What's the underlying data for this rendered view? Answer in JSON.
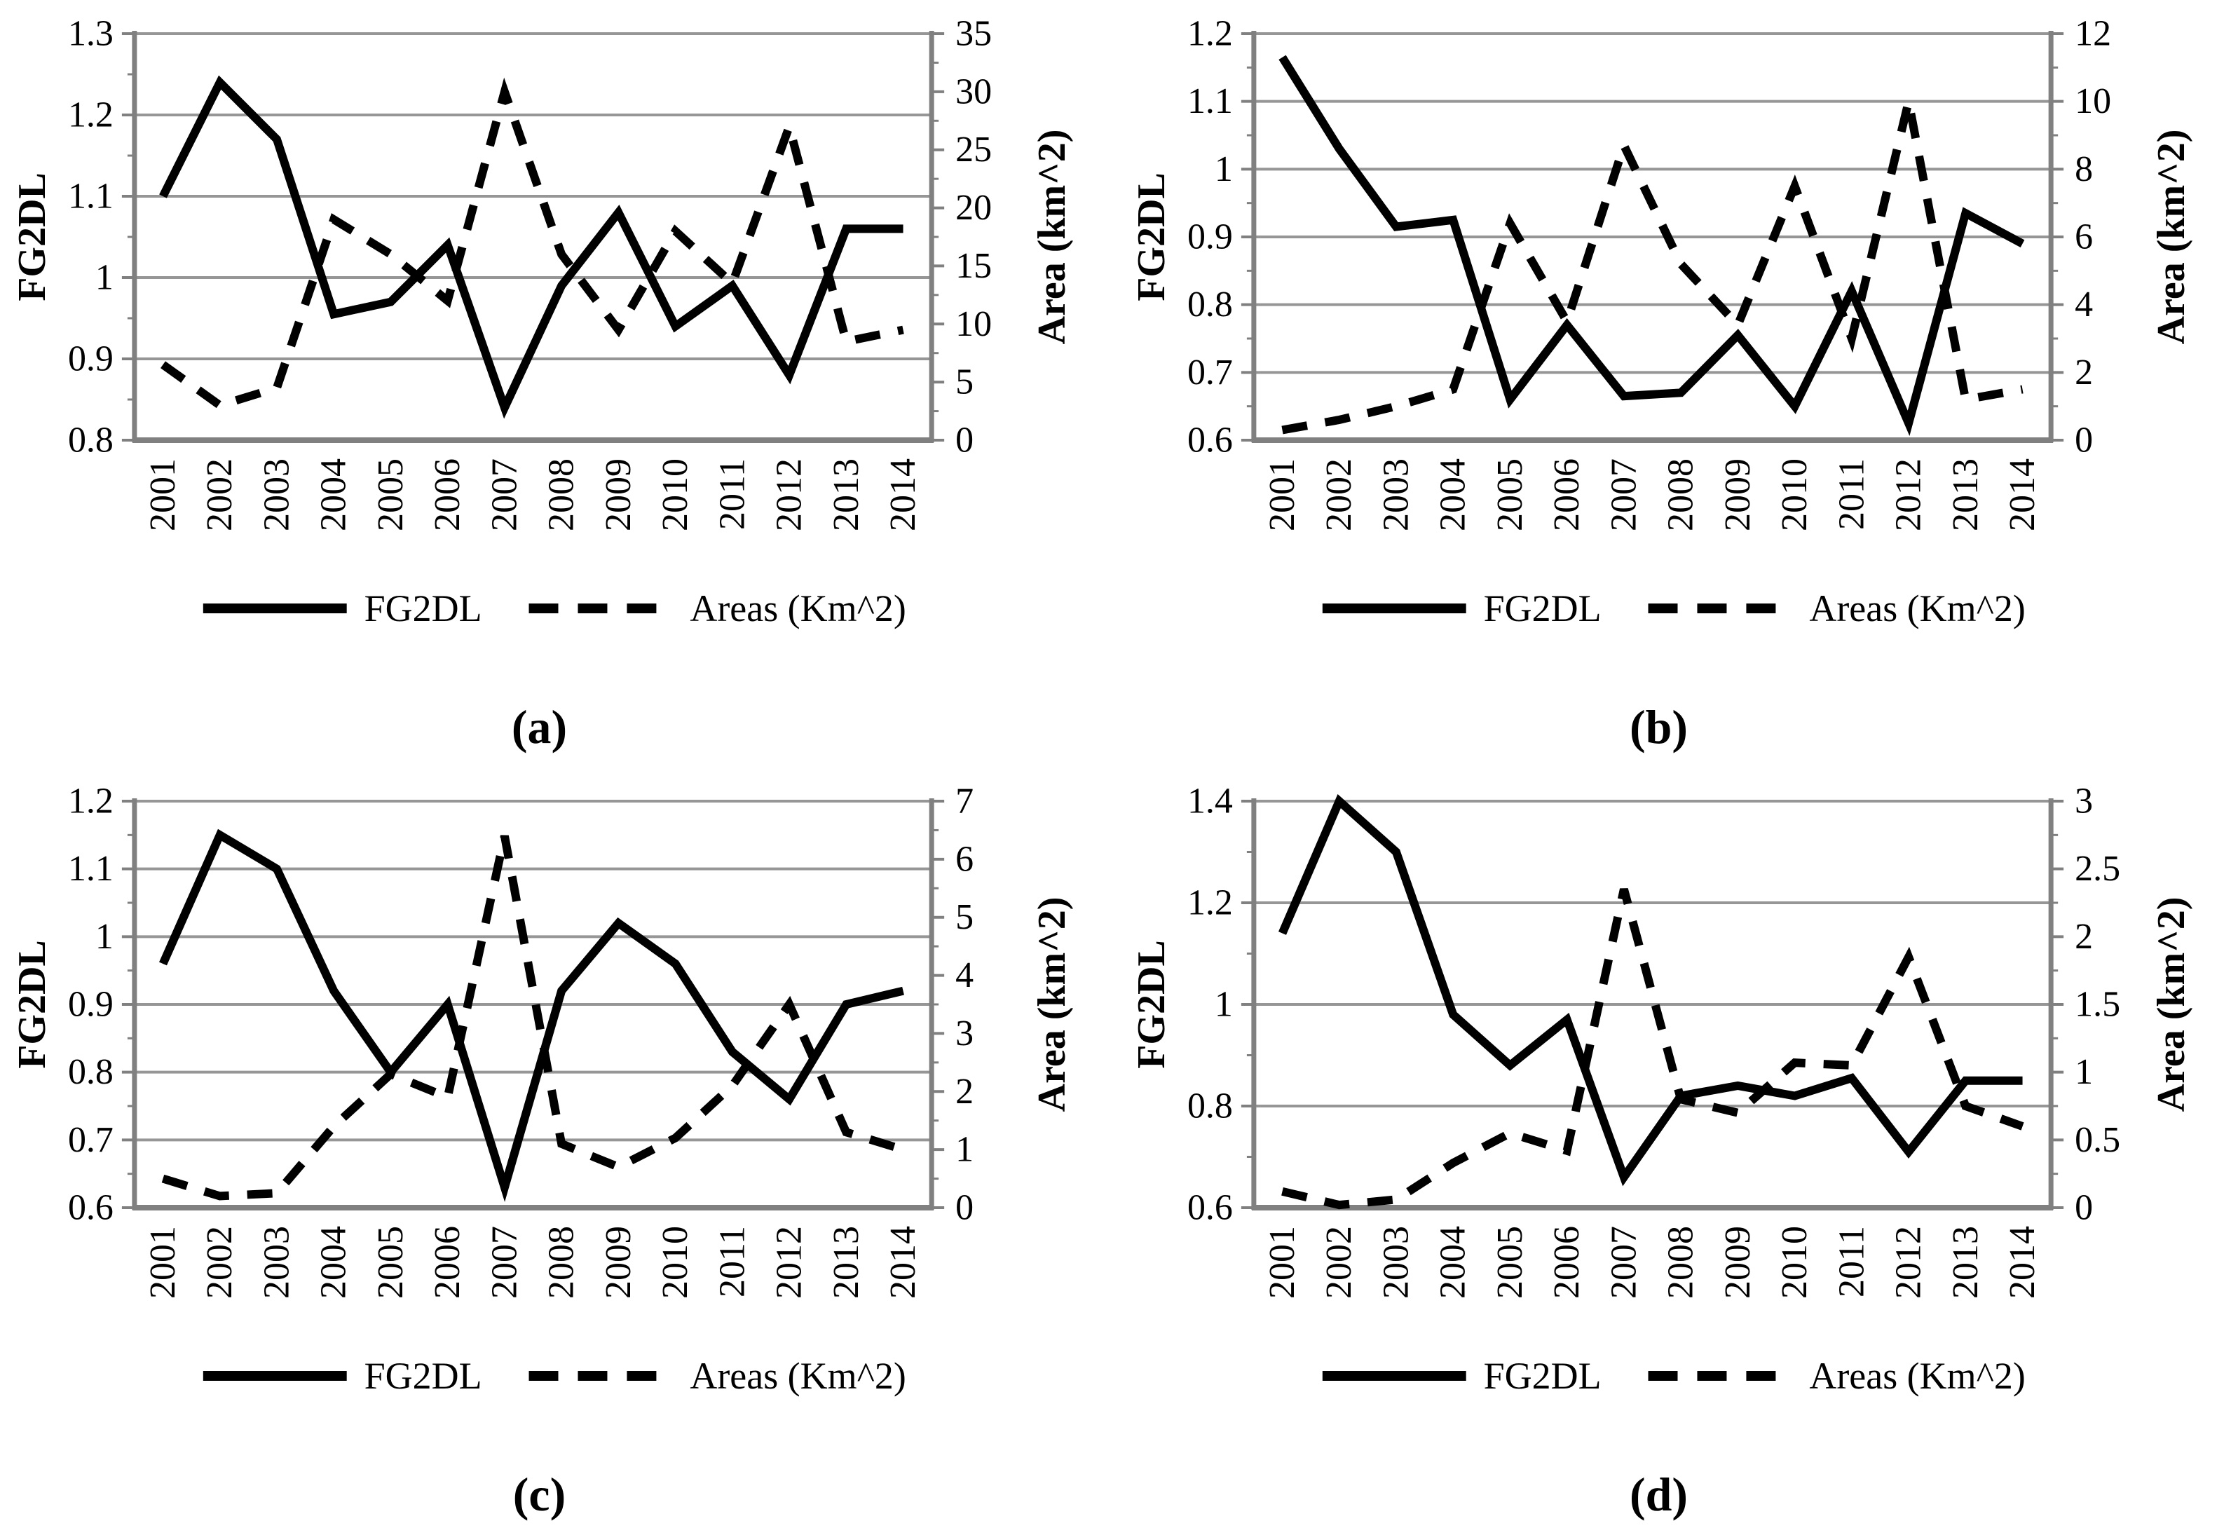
{
  "figure": {
    "background": "#ffffff",
    "grid_color": "#969696",
    "axis_color": "#808080",
    "series_color": "#000000",
    "left_axis_title": "FG2DL",
    "right_axis_title": "Area (km^2)",
    "legend_solid_label": "FG2DL",
    "legend_dashed_label": "Areas (Km^2)"
  },
  "chart_data": [
    {
      "id": "a",
      "type": "line",
      "caption": "(a)",
      "x": [
        "2001",
        "2002",
        "2003",
        "2004",
        "2005",
        "2006",
        "2007",
        "2008",
        "2009",
        "2010",
        "2011",
        "2012",
        "2013",
        "2014"
      ],
      "left_axis": {
        "label": "FG2DL",
        "min": 0.8,
        "max": 1.3,
        "tick_values": [
          0.8,
          0.9,
          1.0,
          1.1,
          1.2,
          1.3
        ],
        "tick_labels": [
          "0.8",
          "0.9",
          "1",
          "1.1",
          "1.2",
          "1.3"
        ]
      },
      "right_axis": {
        "label": "Area (km^2)",
        "min": 0,
        "max": 35,
        "tick_values": [
          0,
          5,
          10,
          15,
          20,
          25,
          30,
          35
        ],
        "tick_labels": [
          "0",
          "5",
          "10",
          "15",
          "20",
          "25",
          "30",
          "35"
        ]
      },
      "legend": [
        {
          "label": "FG2DL",
          "style": "solid"
        },
        {
          "label": "Areas (Km^2)",
          "style": "dashed"
        }
      ],
      "series": [
        {
          "name": "FG2DL",
          "axis": "left",
          "style": "solid",
          "values": [
            1.1,
            1.24,
            1.17,
            0.955,
            0.97,
            1.04,
            0.84,
            0.99,
            1.08,
            0.94,
            0.99,
            0.88,
            1.06,
            1.06
          ]
        },
        {
          "name": "Areas (Km^2)",
          "axis": "right",
          "style": "dashed",
          "values": [
            6.5,
            3,
            4.5,
            19,
            16,
            12,
            30,
            16,
            9.5,
            18,
            13.5,
            27,
            8.5,
            9.5
          ]
        }
      ]
    },
    {
      "id": "b",
      "type": "line",
      "caption": "(b)",
      "x": [
        "2001",
        "2002",
        "2003",
        "2004",
        "2005",
        "2006",
        "2007",
        "2008",
        "2009",
        "2010",
        "2011",
        "2012",
        "2013",
        "2014"
      ],
      "left_axis": {
        "label": "FG2DL",
        "min": 0.6,
        "max": 1.2,
        "tick_values": [
          0.6,
          0.7,
          0.8,
          0.9,
          1.0,
          1.1,
          1.2
        ],
        "tick_labels": [
          "0.6",
          "0.7",
          "0.8",
          "0.9",
          "1",
          "1.1",
          "1.2"
        ]
      },
      "right_axis": {
        "label": "Area (km^2)",
        "min": 0,
        "max": 12,
        "tick_values": [
          0,
          2,
          4,
          6,
          8,
          10,
          12
        ],
        "tick_labels": [
          "0",
          "2",
          "4",
          "6",
          "8",
          "10",
          "12"
        ]
      },
      "legend": [
        {
          "label": "FG2DL",
          "style": "solid"
        },
        {
          "label": "Areas (Km^2)",
          "style": "dashed"
        }
      ],
      "series": [
        {
          "name": "FG2DL",
          "axis": "left",
          "style": "solid",
          "values": [
            1.165,
            1.03,
            0.915,
            0.925,
            0.66,
            0.77,
            0.665,
            0.67,
            0.755,
            0.65,
            0.82,
            0.625,
            0.935,
            0.89
          ]
        },
        {
          "name": "Areas (Km^2)",
          "axis": "right",
          "style": "dashed",
          "values": [
            0.3,
            0.6,
            1.0,
            1.5,
            6.4,
            3.5,
            8.7,
            5.2,
            3.4,
            7.5,
            3.0,
            10.0,
            1.2,
            1.5
          ]
        }
      ]
    },
    {
      "id": "c",
      "type": "line",
      "caption": "(c)",
      "x": [
        "2001",
        "2002",
        "2003",
        "2004",
        "2005",
        "2006",
        "2007",
        "2008",
        "2009",
        "2010",
        "2011",
        "2012",
        "2013",
        "2014"
      ],
      "left_axis": {
        "label": "FG2DL",
        "min": 0.6,
        "max": 1.2,
        "tick_values": [
          0.6,
          0.7,
          0.8,
          0.9,
          1.0,
          1.1,
          1.2
        ],
        "tick_labels": [
          "0.6",
          "0.7",
          "0.8",
          "0.9",
          "1",
          "1.1",
          "1.2"
        ]
      },
      "right_axis": {
        "label": "Area (km^2)",
        "min": 0,
        "max": 7,
        "tick_values": [
          0,
          1,
          2,
          3,
          4,
          5,
          6,
          7
        ],
        "tick_labels": [
          "0",
          "1",
          "2",
          "3",
          "4",
          "5",
          "6",
          "7"
        ]
      },
      "legend": [
        {
          "label": "FG2DL",
          "style": "solid"
        },
        {
          "label": "Areas (Km^2)",
          "style": "dashed"
        }
      ],
      "series": [
        {
          "name": "FG2DL",
          "axis": "left",
          "style": "solid",
          "values": [
            0.96,
            1.15,
            1.1,
            0.92,
            0.8,
            0.9,
            0.63,
            0.92,
            1.02,
            0.96,
            0.83,
            0.76,
            0.9,
            0.92
          ]
        },
        {
          "name": "Areas (Km^2)",
          "axis": "right",
          "style": "dashed",
          "values": [
            0.5,
            0.2,
            0.25,
            1.4,
            2.3,
            1.9,
            6.4,
            1.1,
            0.7,
            1.2,
            2.1,
            3.5,
            1.3,
            1.0
          ]
        }
      ]
    },
    {
      "id": "d",
      "type": "line",
      "caption": "(d)",
      "x": [
        "2001",
        "2002",
        "2003",
        "2004",
        "2005",
        "2006",
        "2007",
        "2008",
        "2009",
        "2010",
        "2011",
        "2012",
        "2013",
        "2014"
      ],
      "left_axis": {
        "label": "FG2DL",
        "min": 0.6,
        "max": 1.4,
        "tick_values": [
          0.6,
          0.8,
          1.0,
          1.2,
          1.4
        ],
        "tick_labels": [
          "0.6",
          "0.8",
          "1",
          "1.2",
          "1.4"
        ]
      },
      "right_axis": {
        "label": "Area (km^2)",
        "min": 0,
        "max": 3,
        "tick_values": [
          0,
          0.5,
          1,
          1.5,
          2,
          2.5,
          3
        ],
        "tick_labels": [
          "0",
          "0.5",
          "1",
          "1.5",
          "2",
          "2.5",
          "3"
        ]
      },
      "legend": [
        {
          "label": "FG2DL",
          "style": "solid"
        },
        {
          "label": "Areas (Km^2)",
          "style": "dashed"
        }
      ],
      "series": [
        {
          "name": "FG2DL",
          "axis": "left",
          "style": "solid",
          "values": [
            1.14,
            1.4,
            1.3,
            0.98,
            0.88,
            0.97,
            0.66,
            0.82,
            0.84,
            0.82,
            0.855,
            0.71,
            0.85,
            0.85
          ]
        },
        {
          "name": "Areas (Km^2)",
          "axis": "right",
          "style": "dashed",
          "values": [
            0.12,
            0.02,
            0.06,
            0.33,
            0.55,
            0.42,
            2.35,
            0.8,
            0.7,
            1.07,
            1.05,
            1.85,
            0.75,
            0.6
          ]
        }
      ]
    }
  ]
}
